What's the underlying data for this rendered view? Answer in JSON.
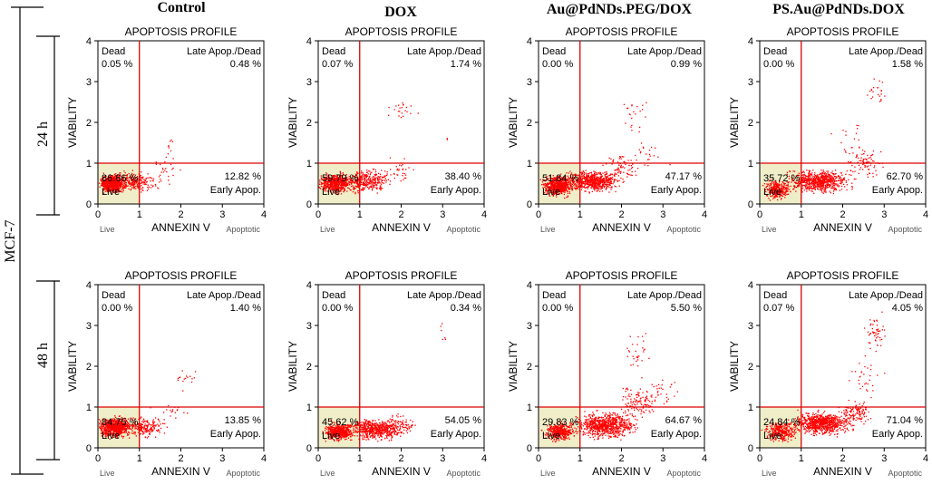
{
  "figure": {
    "cell_line": "MCF-7",
    "columns": [
      "Control",
      "DOX",
      "Au@PdNDs.PEG/DOX",
      "PS.Au@PdNDs.DOX"
    ],
    "rows": [
      "24 h",
      "48 h"
    ]
  },
  "chart_data": [
    {
      "type": "scatter",
      "title": "APOPTOSIS PROFILE",
      "condition": "Control",
      "time": "24 h",
      "xlabel": "ANNEXIN V",
      "ylabel": "VIABILITY",
      "xlim": [
        0,
        4
      ],
      "ylim": [
        0,
        4
      ],
      "xticks": [
        "0",
        "1",
        "2",
        "3",
        "4"
      ],
      "yticks": [
        "0",
        "1",
        "2",
        "3",
        "4"
      ],
      "gates": {
        "x": 1,
        "y": 1
      },
      "x_sublabels": [
        "Live",
        "Apoptotic"
      ],
      "quadrants": {
        "dead": "0.05 %",
        "late": "0.48 %",
        "early": "12.82 %",
        "live": "86.66 %"
      },
      "quadrant_names": {
        "dead": "Dead",
        "late": "Late Apop./Dead",
        "early": "Early Apop.",
        "live": "Live"
      }
    },
    {
      "type": "scatter",
      "title": "APOPTOSIS PROFILE",
      "condition": "DOX",
      "time": "24 h",
      "xlabel": "ANNEXIN V",
      "ylabel": "VIABILITY",
      "xlim": [
        0,
        4
      ],
      "ylim": [
        0,
        4
      ],
      "xticks": [
        "0",
        "1",
        "2",
        "3",
        "4"
      ],
      "yticks": [
        "0",
        "1",
        "2",
        "3",
        "4"
      ],
      "gates": {
        "x": 1,
        "y": 1
      },
      "x_sublabels": [
        "Live",
        "Apoptotic"
      ],
      "quadrants": {
        "dead": "0.07 %",
        "late": "1.74 %",
        "early": "38.40 %",
        "live": "59.79 %"
      },
      "quadrant_names": {
        "dead": "Dead",
        "late": "Late Apop./Dead",
        "early": "Early Apop.",
        "live": "Live"
      }
    },
    {
      "type": "scatter",
      "title": "APOPTOSIS PROFILE",
      "condition": "Au@PdNDs.PEG/DOX",
      "time": "24 h",
      "xlabel": "ANNEXIN V",
      "ylabel": "VIABILITY",
      "xlim": [
        0,
        4
      ],
      "ylim": [
        0,
        4
      ],
      "xticks": [
        "0",
        "1",
        "2",
        "3",
        "4"
      ],
      "yticks": [
        "0",
        "1",
        "2",
        "3",
        "4"
      ],
      "gates": {
        "x": 1,
        "y": 1
      },
      "x_sublabels": [
        "Live",
        "Apoptotic"
      ],
      "quadrants": {
        "dead": "0.00 %",
        "late": "0.99 %",
        "early": "47.17 %",
        "live": "51.84 %"
      },
      "quadrant_names": {
        "dead": "Dead",
        "late": "Late Apop./Dead",
        "early": "Early Apop.",
        "live": "Live"
      }
    },
    {
      "type": "scatter",
      "title": "APOPTOSIS PROFILE",
      "condition": "PS.Au@PdNDs.DOX",
      "time": "24 h",
      "xlabel": "ANNEXIN V",
      "ylabel": "VIABILITY",
      "xlim": [
        0,
        4
      ],
      "ylim": [
        0,
        4
      ],
      "xticks": [
        "0",
        "1",
        "2",
        "3",
        "4"
      ],
      "yticks": [
        "0",
        "1",
        "2",
        "3",
        "4"
      ],
      "gates": {
        "x": 1,
        "y": 1
      },
      "x_sublabels": [
        "Live",
        "Apoptotic"
      ],
      "quadrants": {
        "dead": "0.00 %",
        "late": "1.58 %",
        "early": "62.70 %",
        "live": "35.72 %"
      },
      "quadrant_names": {
        "dead": "Dead",
        "late": "Late Apop./Dead",
        "early": "Early Apop.",
        "live": "Live"
      }
    },
    {
      "type": "scatter",
      "title": "APOPTOSIS PROFILE",
      "condition": "Control",
      "time": "48 h",
      "xlabel": "ANNEXIN V",
      "ylabel": "VIABILITY",
      "xlim": [
        0,
        4
      ],
      "ylim": [
        0,
        4
      ],
      "xticks": [
        "0",
        "1",
        "2",
        "3",
        "4"
      ],
      "yticks": [
        "0",
        "1",
        "2",
        "3",
        "4"
      ],
      "gates": {
        "x": 1,
        "y": 1
      },
      "x_sublabels": [
        "Live",
        "Apoptotic"
      ],
      "quadrants": {
        "dead": "0.00 %",
        "late": "1.40 %",
        "early": "13.85 %",
        "live": "84.75 %"
      },
      "quadrant_names": {
        "dead": "Dead",
        "late": "Late Apop./Dead",
        "early": "Early Apop.",
        "live": "Live"
      }
    },
    {
      "type": "scatter",
      "title": "APOPTOSIS PROFILE",
      "condition": "DOX",
      "time": "48 h",
      "xlabel": "ANNEXIN V",
      "ylabel": "VIABILITY",
      "xlim": [
        0,
        4
      ],
      "ylim": [
        0,
        4
      ],
      "xticks": [
        "0",
        "1",
        "2",
        "3",
        "4"
      ],
      "yticks": [
        "0",
        "1",
        "2",
        "3",
        "4"
      ],
      "gates": {
        "x": 1,
        "y": 1
      },
      "x_sublabels": [
        "Live",
        "Apoptotic"
      ],
      "quadrants": {
        "dead": "0.00 %",
        "late": "0.34 %",
        "early": "54.05 %",
        "live": "45.62 %"
      },
      "quadrant_names": {
        "dead": "Dead",
        "late": "Late Apop./Dead",
        "early": "Early Apop.",
        "live": "Live"
      }
    },
    {
      "type": "scatter",
      "title": "APOPTOSIS PROFILE",
      "condition": "Au@PdNDs.PEG/DOX",
      "time": "48 h",
      "xlabel": "ANNEXIN V",
      "ylabel": "VIABILITY",
      "xlim": [
        0,
        4
      ],
      "ylim": [
        0,
        4
      ],
      "xticks": [
        "0",
        "1",
        "2",
        "3",
        "4"
      ],
      "yticks": [
        "0",
        "1",
        "2",
        "3",
        "4"
      ],
      "gates": {
        "x": 1,
        "y": 1
      },
      "x_sublabels": [
        "Live",
        "Apoptotic"
      ],
      "quadrants": {
        "dead": "0.00 %",
        "late": "5.50 %",
        "early": "64.67 %",
        "live": "29.83 %"
      },
      "quadrant_names": {
        "dead": "Dead",
        "late": "Late Apop./Dead",
        "early": "Early Apop.",
        "live": "Live"
      }
    },
    {
      "type": "scatter",
      "title": "APOPTOSIS PROFILE",
      "condition": "PS.Au@PdNDs.DOX",
      "time": "48 h",
      "xlabel": "ANNEXIN V",
      "ylabel": "VIABILITY",
      "xlim": [
        0,
        4
      ],
      "ylim": [
        0,
        4
      ],
      "xticks": [
        "0",
        "1",
        "2",
        "3",
        "4"
      ],
      "yticks": [
        "0",
        "1",
        "2",
        "3",
        "4"
      ],
      "gates": {
        "x": 1,
        "y": 1
      },
      "x_sublabels": [
        "Live",
        "Apoptotic"
      ],
      "quadrants": {
        "dead": "0.07 %",
        "late": "4.05 %",
        "early": "71.04 %",
        "live": "24.84 %"
      },
      "quadrant_names": {
        "dead": "Dead",
        "late": "Late Apop./Dead",
        "early": "Early Apop.",
        "live": "Live"
      }
    }
  ],
  "colors": {
    "points": "#ff0000",
    "gate": "#dd0000",
    "live_fill": "#efeec8",
    "axis": "#000000"
  }
}
